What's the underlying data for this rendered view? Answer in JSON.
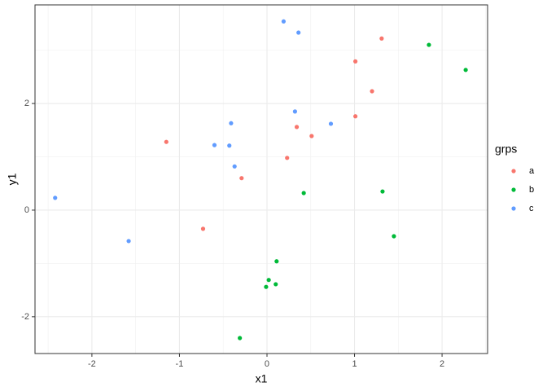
{
  "chart_data": {
    "type": "scatter",
    "x_label": "x1",
    "y_label": "y1",
    "legend_title": "grps",
    "legend": "right",
    "grid": true,
    "xlim": [
      -2.65,
      2.52
    ],
    "ylim": [
      -2.69,
      3.85
    ],
    "xticks": [
      -2,
      -1,
      0,
      1,
      2
    ],
    "yticks": [
      -2,
      0,
      2
    ],
    "series": [
      {
        "name": "a",
        "color": "#F8766D",
        "x": [
          1.31,
          1.01,
          1.2,
          1.01,
          0.34,
          0.51,
          -1.15,
          0.23,
          -0.29,
          -0.73
        ],
        "values": [
          3.22,
          2.79,
          2.23,
          1.76,
          1.56,
          1.39,
          1.28,
          0.98,
          0.6,
          -0.35
        ]
      },
      {
        "name": "b",
        "color": "#00BA38",
        "x": [
          1.85,
          2.27,
          0.42,
          1.32,
          1.45,
          0.11,
          0.02,
          0.1,
          -0.01,
          -0.31
        ],
        "values": [
          3.1,
          2.63,
          0.32,
          0.35,
          -0.49,
          -0.96,
          -1.31,
          -1.39,
          -1.44,
          -2.4
        ]
      },
      {
        "name": "c",
        "color": "#619CFF",
        "x": [
          0.19,
          0.36,
          0.32,
          -0.41,
          0.73,
          -0.6,
          -0.43,
          -0.37,
          -2.42,
          -1.58
        ],
        "values": [
          3.54,
          3.33,
          1.85,
          1.63,
          1.62,
          1.22,
          1.21,
          0.82,
          0.23,
          -0.58
        ]
      }
    ]
  }
}
